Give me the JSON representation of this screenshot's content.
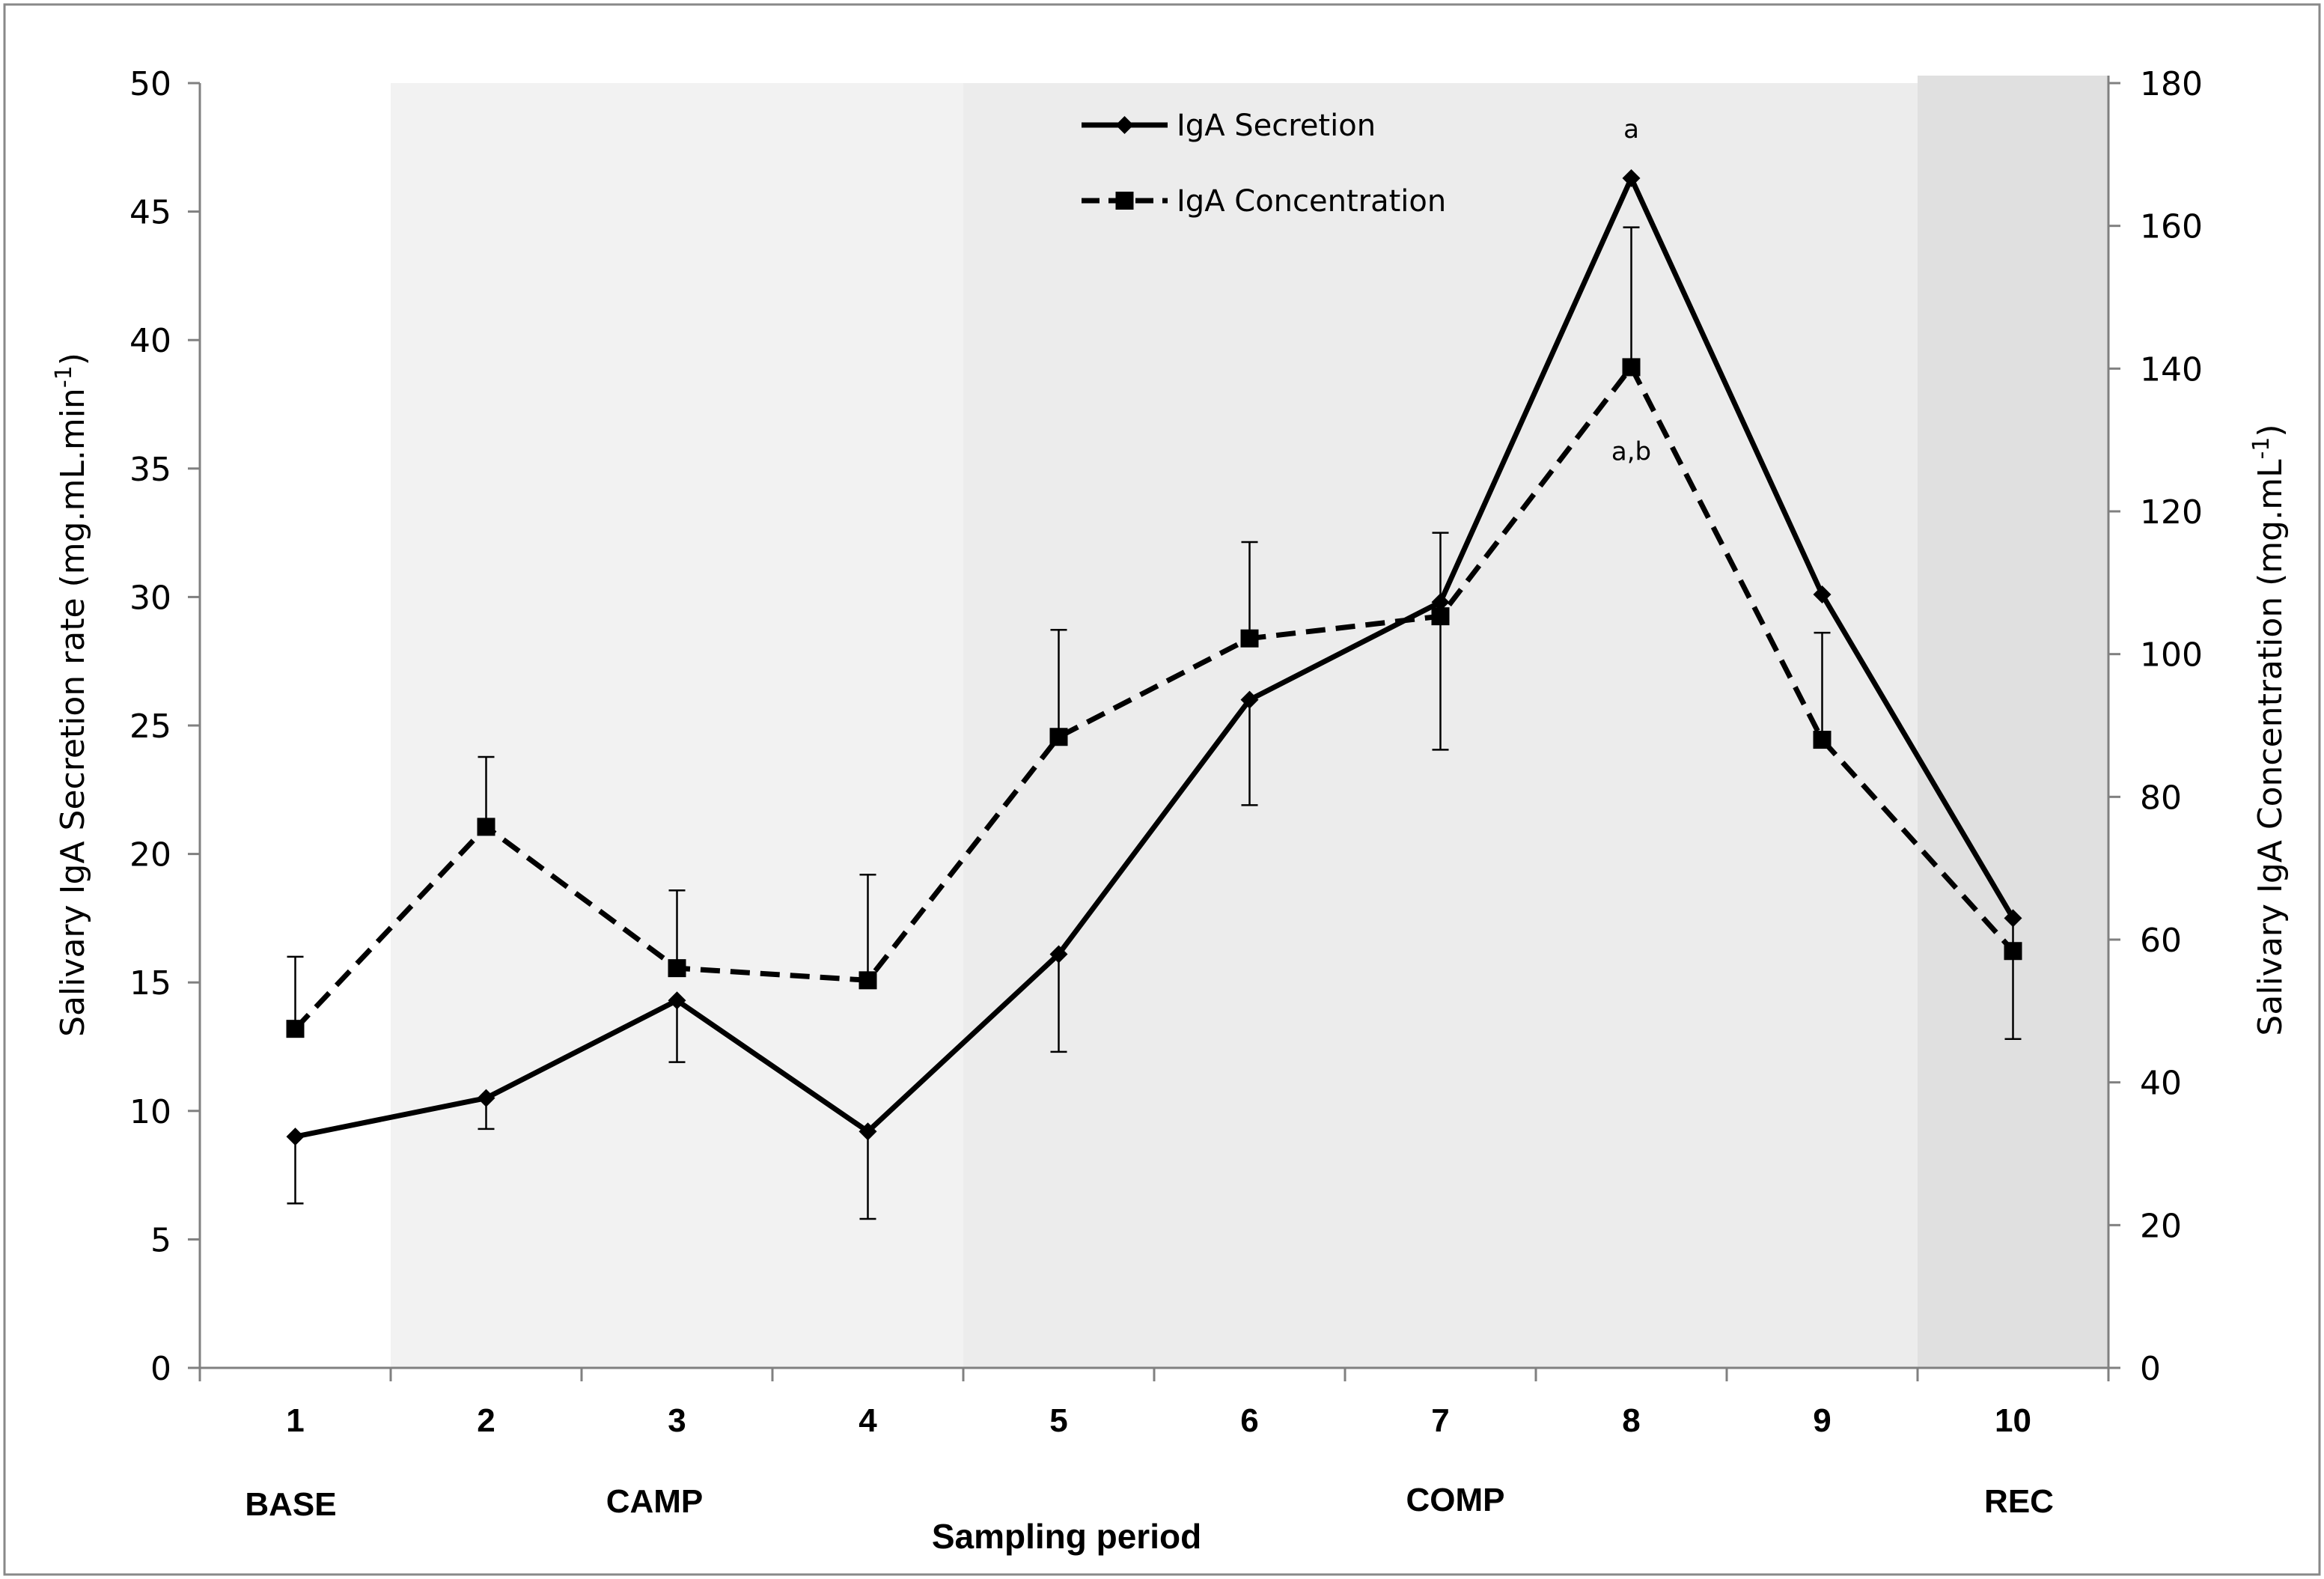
{
  "chart_data": {
    "type": "line",
    "title": "",
    "xlabel": "Sampling period",
    "ylabel_left": "Salivary IgA Secretion rate (mg.mL.min",
    "ylabel_left_sup": "-1",
    "ylabel_left_end": ")",
    "ylabel_right": "Salivary IgA Concentration (mg.mL",
    "ylabel_right_sup": "-1",
    "ylabel_right_end": ")",
    "categories": [
      "1",
      "2",
      "3",
      "4",
      "5",
      "6",
      "7",
      "8",
      "9",
      "10"
    ],
    "ylim_left": [
      0,
      50
    ],
    "ylim_right": [
      0,
      180
    ],
    "yticks_left": [
      0,
      5,
      10,
      15,
      20,
      25,
      30,
      35,
      40,
      45,
      50
    ],
    "yticks_right": [
      0,
      20,
      40,
      60,
      80,
      100,
      120,
      140,
      160,
      180
    ],
    "phases": [
      {
        "label": "BASE",
        "from": 1,
        "to": 1,
        "shade": "#ffffff"
      },
      {
        "label": "CAMP",
        "from": 2,
        "to": 4,
        "shade": "#f2f2f2"
      },
      {
        "label": "COMP",
        "from": 5,
        "to": 9,
        "shade": "#ececec"
      },
      {
        "label": "REC",
        "from": 10,
        "to": 10,
        "shade": "#e0e0e0"
      }
    ],
    "series": [
      {
        "name": "IgA Secretion",
        "axis": "left",
        "style": "solid",
        "marker": "diamond",
        "values": [
          9.0,
          10.5,
          14.3,
          9.2,
          16.1,
          26.0,
          29.8,
          46.3,
          30.1,
          17.5
        ],
        "error_low": [
          6.4,
          9.3,
          11.9,
          5.8,
          12.3,
          21.9,
          null,
          null,
          null,
          12.8
        ],
        "error_high": [
          null,
          null,
          null,
          null,
          null,
          null,
          null,
          null,
          null,
          null
        ]
      },
      {
        "name": "IgA Concentration",
        "axis": "right",
        "style": "dashed",
        "marker": "square",
        "values": [
          47.5,
          75.8,
          56.0,
          54.3,
          88.4,
          102.2,
          105.3,
          140.2,
          88.0,
          58.4
        ],
        "error_low": [
          null,
          null,
          null,
          null,
          null,
          null,
          86.6,
          null,
          null,
          null
        ],
        "error_high": [
          57.6,
          85.6,
          66.9,
          69.1,
          103.4,
          115.7,
          117.0,
          159.8,
          103.0,
          null
        ]
      }
    ],
    "annotations": [
      {
        "text": "a",
        "category": "8",
        "series": "IgA Secretion"
      },
      {
        "text": "a,b",
        "category": "8",
        "series": "IgA Concentration"
      }
    ],
    "legend": {
      "position": "top-center",
      "entries": [
        "IgA Secretion",
        "IgA Concentration"
      ]
    }
  }
}
